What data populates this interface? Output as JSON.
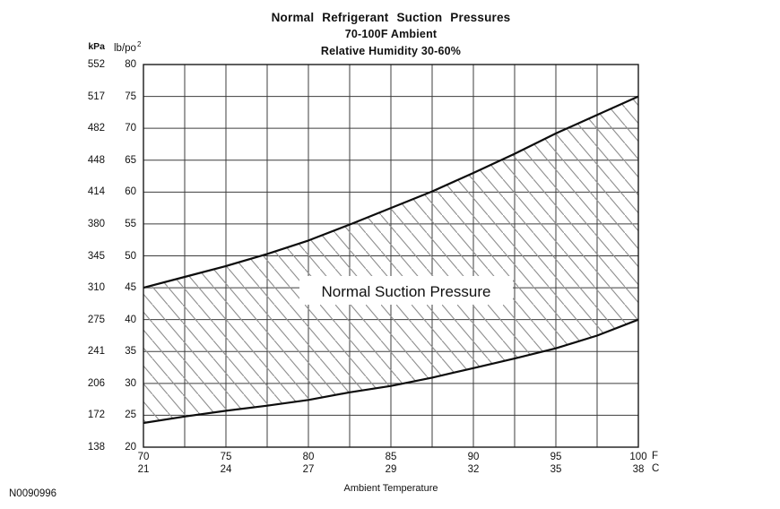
{
  "colors": {
    "background": "#ffffff",
    "grid": "#3d3d3d",
    "border": "#1a1a1a",
    "curve": "#0d0d0d",
    "hatch": "#909090",
    "text": "#111111"
  },
  "chart_data": {
    "type": "area",
    "title": "Normal Refrigerant Suction Pressures",
    "subtitle1": "70-100F Ambient",
    "subtitle2": "Relative Humidity 30-60%",
    "band_label": "Normal Suction Pressure",
    "xlabel": "Ambient Temperature",
    "figure_code": "N0090996",
    "y_unit_primary": "kPa",
    "y_unit_secondary_base": "lb/po",
    "y_unit_secondary_sup": "2",
    "x_unit_primary": "F",
    "x_unit_secondary": "C",
    "xlim": [
      70,
      100
    ],
    "ylim": [
      20,
      80
    ],
    "x_gridline_step": 2.5,
    "y_gridline_step": 5,
    "grid": true,
    "x_ticks_f": [
      70,
      75,
      80,
      85,
      90,
      95,
      100
    ],
    "x_ticks_c": [
      21,
      24,
      27,
      29,
      32,
      35,
      38
    ],
    "y_ticks_lb": [
      80,
      75,
      70,
      65,
      60,
      55,
      50,
      45,
      40,
      35,
      30,
      25,
      20
    ],
    "y_ticks_kpa": [
      552,
      517,
      482,
      448,
      414,
      380,
      345,
      310,
      275,
      241,
      206,
      172,
      138
    ],
    "x": [
      70,
      72.5,
      75,
      77.5,
      80,
      82.5,
      85,
      87.5,
      90,
      92.5,
      95,
      97.5,
      100
    ],
    "series": [
      {
        "name": "upper_limit_lb_po2",
        "values": [
          45,
          46.7,
          48.4,
          50.3,
          52.4,
          54.9,
          57.5,
          60.1,
          63,
          66,
          69.2,
          72.1,
          75
        ]
      },
      {
        "name": "lower_limit_lb_po2",
        "values": [
          23.8,
          24.8,
          25.7,
          26.5,
          27.4,
          28.6,
          29.6,
          30.9,
          32.4,
          33.9,
          35.5,
          37.5,
          40
        ]
      }
    ]
  }
}
